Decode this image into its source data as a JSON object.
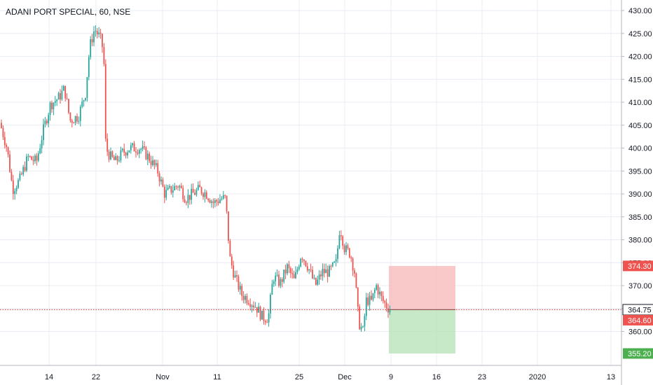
{
  "title": "ADANI PORT SPECIAL, 60, NSE",
  "colors": {
    "up": "#26a69a",
    "down": "#ef5350",
    "grid": "#e8ecf3",
    "axis_text": "#131722",
    "stop_zone": "#f7b7b7",
    "target_zone": "#b9e3b9",
    "last_price_line": "#d32f2f"
  },
  "chart_data": {
    "type": "candlestick",
    "title": "ADANI PORT SPECIAL, 60, NSE",
    "y_ticks": [
      360,
      365,
      370,
      375,
      380,
      385,
      390,
      395,
      400,
      405,
      410,
      415,
      420,
      425,
      430
    ],
    "y_tick_labels": [
      "360.00",
      "365.00",
      "370.00",
      "375.00",
      "380.00",
      "385.00",
      "390.00",
      "395.00",
      "400.00",
      "405.00",
      "410.00",
      "415.00",
      "420.00",
      "425.00",
      "430.00"
    ],
    "ylim": [
      352.6,
      432.3
    ],
    "x_tick_labels": [
      "14",
      "22",
      "Nov",
      "11",
      "25",
      "Dec",
      "9",
      "16",
      "23",
      "2020",
      "13"
    ],
    "grid": true,
    "price_path": [
      {
        "x": 0,
        "y": 405.5
      },
      {
        "x": 10,
        "y": 400
      },
      {
        "x": 18,
        "y": 391
      },
      {
        "x": 28,
        "y": 393
      },
      {
        "x": 40,
        "y": 398
      },
      {
        "x": 52,
        "y": 397
      },
      {
        "x": 62,
        "y": 404
      },
      {
        "x": 72,
        "y": 409.5
      },
      {
        "x": 84,
        "y": 411
      },
      {
        "x": 92,
        "y": 413
      },
      {
        "x": 100,
        "y": 406
      },
      {
        "x": 112,
        "y": 407
      },
      {
        "x": 122,
        "y": 412
      },
      {
        "x": 128,
        "y": 422
      },
      {
        "x": 135,
        "y": 426
      },
      {
        "x": 143,
        "y": 424
      },
      {
        "x": 148,
        "y": 421
      },
      {
        "x": 151,
        "y": 400
      },
      {
        "x": 158,
        "y": 398
      },
      {
        "x": 165,
        "y": 397
      },
      {
        "x": 175,
        "y": 399
      },
      {
        "x": 185,
        "y": 400
      },
      {
        "x": 200,
        "y": 400
      },
      {
        "x": 212,
        "y": 398
      },
      {
        "x": 225,
        "y": 395
      },
      {
        "x": 235,
        "y": 390
      },
      {
        "x": 245,
        "y": 391
      },
      {
        "x": 255,
        "y": 392
      },
      {
        "x": 265,
        "y": 389
      },
      {
        "x": 275,
        "y": 390
      },
      {
        "x": 285,
        "y": 391
      },
      {
        "x": 295,
        "y": 390
      },
      {
        "x": 305,
        "y": 388
      },
      {
        "x": 315,
        "y": 389
      },
      {
        "x": 322,
        "y": 389
      },
      {
        "x": 328,
        "y": 376
      },
      {
        "x": 335,
        "y": 372
      },
      {
        "x": 345,
        "y": 368
      },
      {
        "x": 355,
        "y": 367
      },
      {
        "x": 365,
        "y": 365.5
      },
      {
        "x": 375,
        "y": 363
      },
      {
        "x": 383,
        "y": 363
      },
      {
        "x": 390,
        "y": 372
      },
      {
        "x": 400,
        "y": 370.5
      },
      {
        "x": 410,
        "y": 374
      },
      {
        "x": 420,
        "y": 371
      },
      {
        "x": 430,
        "y": 377
      },
      {
        "x": 440,
        "y": 374
      },
      {
        "x": 450,
        "y": 370
      },
      {
        "x": 460,
        "y": 373
      },
      {
        "x": 470,
        "y": 373
      },
      {
        "x": 480,
        "y": 375
      },
      {
        "x": 485,
        "y": 383
      },
      {
        "x": 492,
        "y": 378
      },
      {
        "x": 500,
        "y": 377
      },
      {
        "x": 506,
        "y": 373
      },
      {
        "x": 512,
        "y": 362
      },
      {
        "x": 518,
        "y": 360
      },
      {
        "x": 523,
        "y": 367
      },
      {
        "x": 530,
        "y": 366.5
      },
      {
        "x": 537,
        "y": 370
      },
      {
        "x": 545,
        "y": 367
      },
      {
        "x": 552,
        "y": 365.5
      },
      {
        "x": 557,
        "y": 364.75
      }
    ],
    "position": {
      "type": "short",
      "stop": 374.3,
      "entry": 364.75,
      "target": 355.2,
      "start_x_label": "9",
      "end_x_label": "16"
    },
    "price_labels": [
      {
        "text": "374.30",
        "value": 374.3,
        "bg": "#ef5350",
        "fg": "#ffffff"
      },
      {
        "text": "364.75",
        "value": 364.75,
        "bg": "#ffffff",
        "fg": "#131722",
        "boxed": true
      },
      {
        "text": "364.60",
        "value": 364.6,
        "bg": "#ef5350",
        "fg": "#ffffff"
      },
      {
        "text": "355.20",
        "value": 355.2,
        "bg": "#4caf50",
        "fg": "#ffffff"
      }
    ],
    "last_price": 364.6
  }
}
